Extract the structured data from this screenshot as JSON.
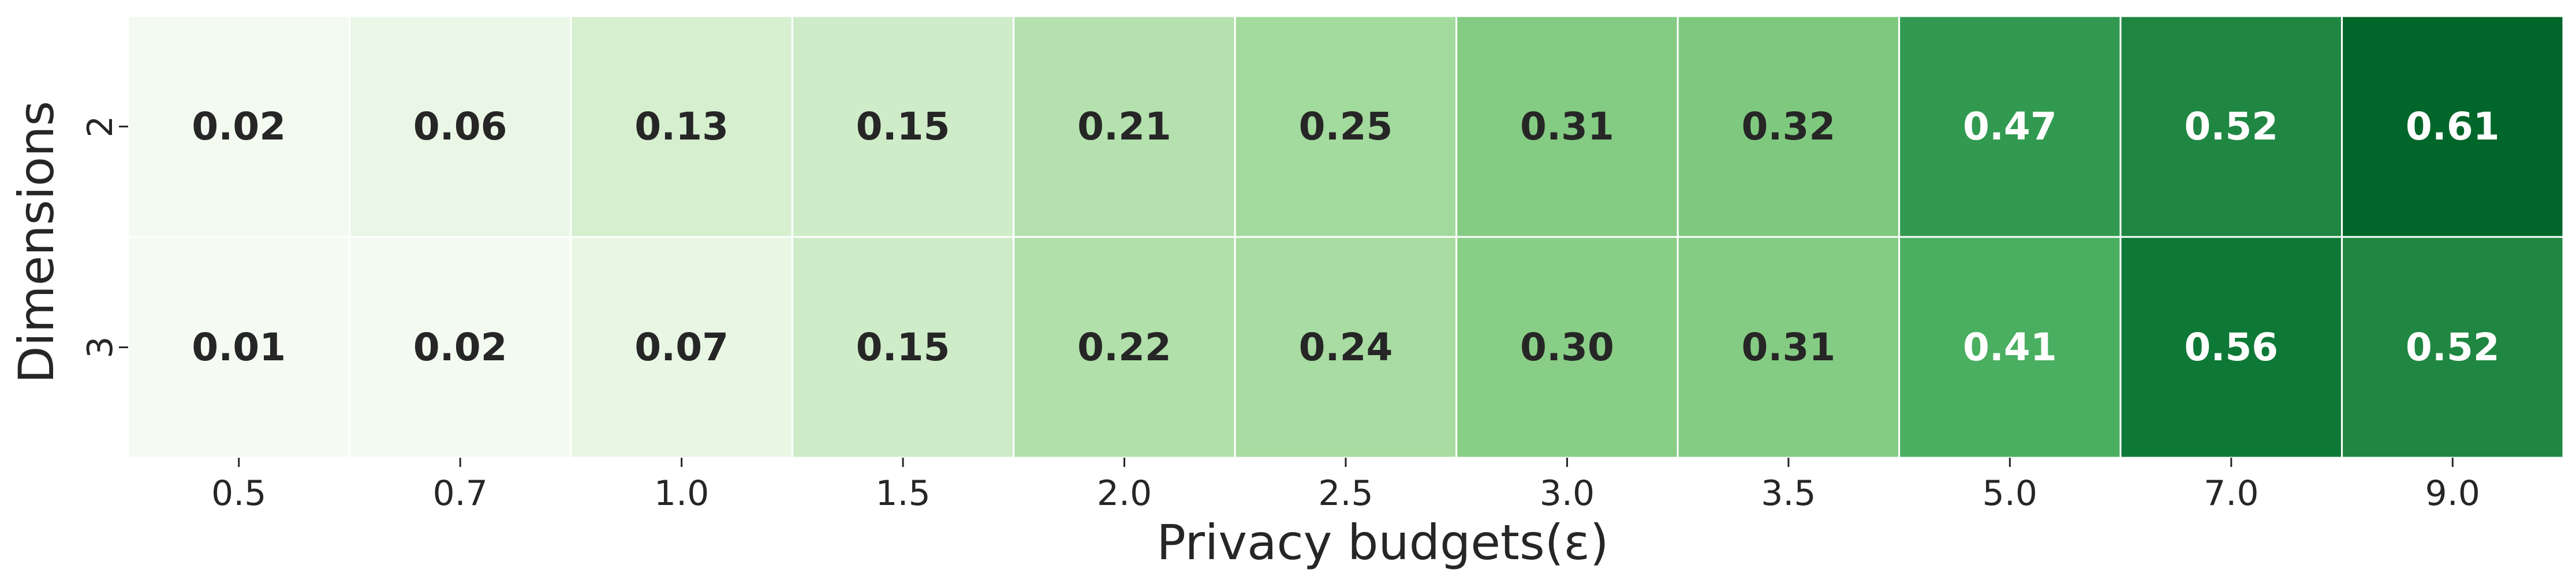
{
  "chart_data": {
    "type": "heatmap",
    "title": "",
    "xlabel": "Privacy budgets(ε)",
    "ylabel": "Dimensions",
    "x_categories": [
      "0.5",
      "0.7",
      "1.0",
      "1.5",
      "2.0",
      "2.5",
      "3.0",
      "3.5",
      "5.0",
      "7.0",
      "9.0"
    ],
    "y_categories": [
      "2",
      "3"
    ],
    "values": [
      [
        0.02,
        0.06,
        0.13,
        0.15,
        0.21,
        0.25,
        0.31,
        0.32,
        0.47,
        0.52,
        0.61
      ],
      [
        0.01,
        0.02,
        0.07,
        0.15,
        0.22,
        0.24,
        0.3,
        0.31,
        0.41,
        0.56,
        0.52
      ]
    ],
    "cell_labels": [
      [
        "0.02",
        "0.06",
        "0.13",
        "0.15",
        "0.21",
        "0.25",
        "0.31",
        "0.32",
        "0.47",
        "0.52",
        "0.61"
      ],
      [
        "0.01",
        "0.02",
        "0.07",
        "0.15",
        "0.22",
        "0.24",
        "0.30",
        "0.31",
        "0.41",
        "0.56",
        "0.52"
      ]
    ],
    "color_range": [
      0.0,
      0.68
    ],
    "colormap": "Greens",
    "colorbar": false,
    "grid": false,
    "legend": "none"
  },
  "colors": {
    "colormap_stops": [
      "#f7fcf5",
      "#e5f5e0",
      "#c7e9c0",
      "#a1d99b",
      "#74c476",
      "#41ab5d",
      "#238b45",
      "#006d2c",
      "#00441b"
    ],
    "cell_border": "#ffffff",
    "dark_text": "#262626",
    "light_text": "#ffffff"
  }
}
